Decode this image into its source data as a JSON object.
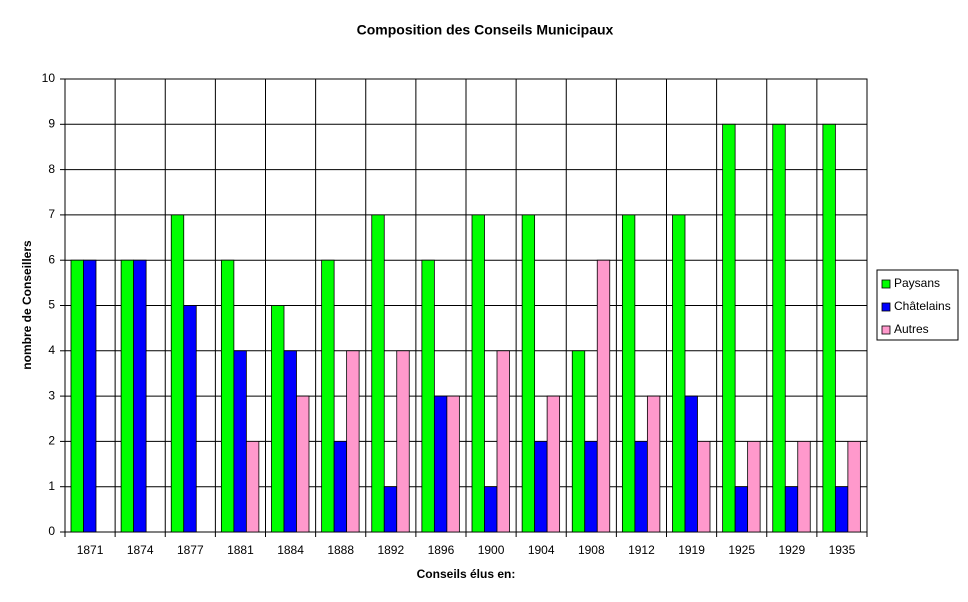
{
  "chart_data": {
    "type": "bar",
    "title": "Composition des Conseils Municipaux",
    "x_label": "Conseils élus en:",
    "y_label": "nombre de Conseillers",
    "categories": [
      "1871",
      "1874",
      "1877",
      "1881",
      "1884",
      "1888",
      "1892",
      "1896",
      "1900",
      "1904",
      "1908",
      "1912",
      "1919",
      "1925",
      "1929",
      "1935"
    ],
    "series": [
      {
        "name": "Paysans",
        "color": "#00ff00",
        "values": [
          6,
          6,
          7,
          6,
          5,
          6,
          7,
          6,
          7,
          7,
          4,
          7,
          7,
          9,
          9,
          9
        ]
      },
      {
        "name": "Châtelains",
        "color": "#0000ff",
        "values": [
          6,
          6,
          5,
          4,
          4,
          2,
          1,
          3,
          1,
          2,
          2,
          2,
          3,
          1,
          1,
          1
        ]
      },
      {
        "name": "Autres",
        "color": "#ff99cc",
        "values": [
          0,
          0,
          0,
          2,
          3,
          4,
          4,
          3,
          4,
          3,
          6,
          3,
          2,
          2,
          2,
          2
        ]
      }
    ],
    "ylim": [
      0,
      10
    ],
    "yticks": [
      0,
      1,
      2,
      3,
      4,
      5,
      6,
      7,
      8,
      9,
      10
    ],
    "grid": true,
    "legend": "right"
  }
}
